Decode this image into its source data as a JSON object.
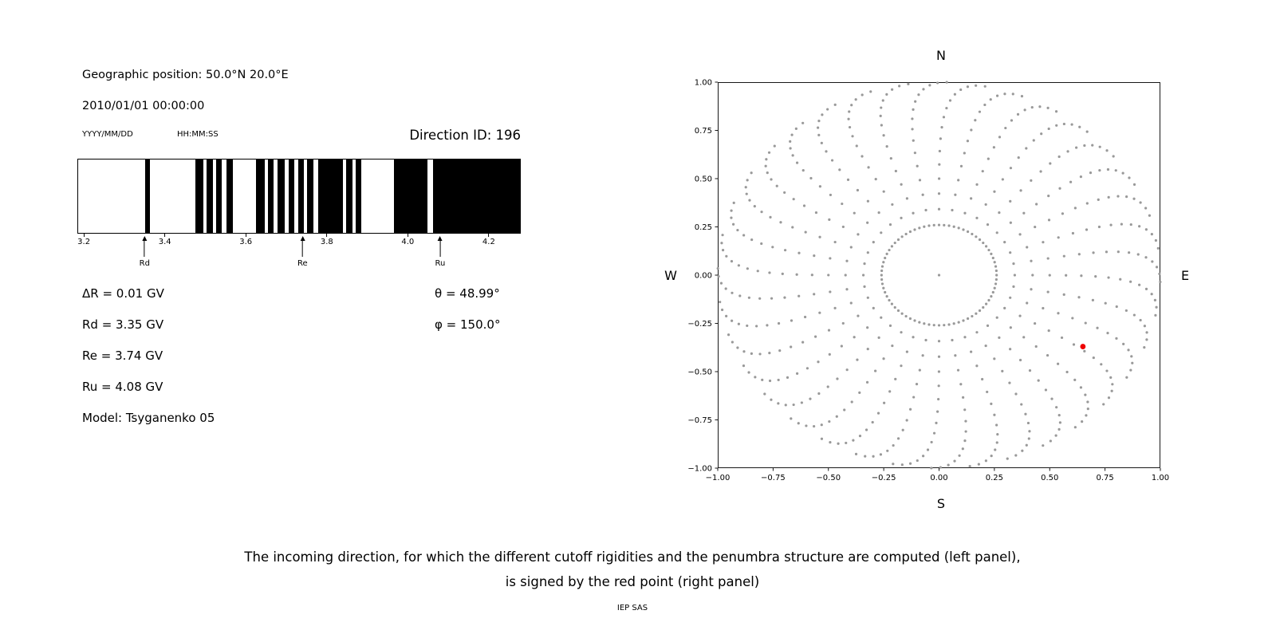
{
  "left_panel": {
    "geographic_position": "Geographic position: 50.0°N 20.0°E",
    "datetime": "2010/01/01 00:00:00",
    "date_format_label": "YYYY/MM/DD",
    "time_format_label": "HH:MM:SS",
    "direction_id_label": "Direction ID: 196",
    "stats": [
      "ΔR = 0.01 GV",
      "Rd = 3.35 GV",
      "Re = 3.74 GV",
      "Ru = 4.08 GV",
      "Model: Tsyganenko 05"
    ],
    "theta": "θ = 48.99°",
    "phi": "φ = 150.0°"
  },
  "caption": {
    "line1": "The incoming direction, for which the different cutoff rigidities and the penumbra structure are computed (left panel),",
    "line2": "is signed by the red point (right panel)",
    "credit": "IEP SAS"
  },
  "chart_data": [
    {
      "id": "penumbra-barcode",
      "type": "bar",
      "description": "Penumbra structure: black bands mark forbidden rigidity intervals in GV",
      "xlim": [
        3.184,
        4.279
      ],
      "xtick_values": [
        3.2,
        3.4,
        3.6,
        3.8,
        4.0,
        4.2
      ],
      "xtick_labels": [
        "3.2",
        "3.4",
        "3.6",
        "3.8",
        "4.0",
        "4.2"
      ],
      "band_color": "#000000",
      "bands_gv": [
        [
          3.35,
          3.362
        ],
        [
          3.474,
          3.494
        ],
        [
          3.502,
          3.518
        ],
        [
          3.525,
          3.539
        ],
        [
          3.551,
          3.567
        ],
        [
          3.624,
          3.646
        ],
        [
          3.654,
          3.669
        ],
        [
          3.679,
          3.695
        ],
        [
          3.705,
          3.719
        ],
        [
          3.729,
          3.743
        ],
        [
          3.752,
          3.768
        ],
        [
          3.778,
          3.841
        ],
        [
          3.849,
          3.863
        ],
        [
          3.871,
          3.885
        ],
        [
          3.967,
          4.05
        ],
        [
          4.064,
          4.279
        ]
      ],
      "markers": [
        {
          "label": "Rd",
          "x": 3.35
        },
        {
          "label": "Re",
          "x": 3.74
        },
        {
          "label": "Ru",
          "x": 4.08
        }
      ]
    },
    {
      "id": "direction-grid",
      "type": "scatter",
      "description": "Polar grid of incoming directions (r = sin(zenith), azimuth rays); red point marks the selected direction",
      "xlim": [
        -1.0,
        1.0
      ],
      "ylim": [
        -1.0,
        1.0
      ],
      "xtick_values": [
        -1.0,
        -0.75,
        -0.5,
        -0.25,
        0.0,
        0.25,
        0.5,
        0.75,
        1.0
      ],
      "xtick_labels": [
        "−1.00",
        "−0.75",
        "−0.50",
        "−0.25",
        "0.00",
        "0.25",
        "0.50",
        "0.75",
        "1.00"
      ],
      "ytick_values": [
        -1.0,
        -0.75,
        -0.5,
        -0.25,
        0.0,
        0.25,
        0.5,
        0.75,
        1.0
      ],
      "ytick_labels": [
        "−1.00",
        "−0.75",
        "−0.50",
        "−0.25",
        "0.00",
        "0.25",
        "0.50",
        "0.75",
        "1.00"
      ],
      "compass_labels": {
        "top": "N",
        "bottom": "S",
        "left": "W",
        "right": "E"
      },
      "dot_color": "#999999",
      "grid_pattern": {
        "azimuth_step_deg": 10,
        "zenith_start_deg": 20,
        "zenith_step_deg": 5,
        "zenith_end_deg": 90,
        "radius_rule": "sin(zenith)",
        "twist_deg_at_edge": -12,
        "inner_ring_radius": 0.26,
        "inner_ring_dots": 72,
        "center_dot": true
      },
      "selected_point": {
        "x": 0.65,
        "y": -0.37,
        "color": "#ee0000",
        "direction_id": 196
      }
    }
  ]
}
